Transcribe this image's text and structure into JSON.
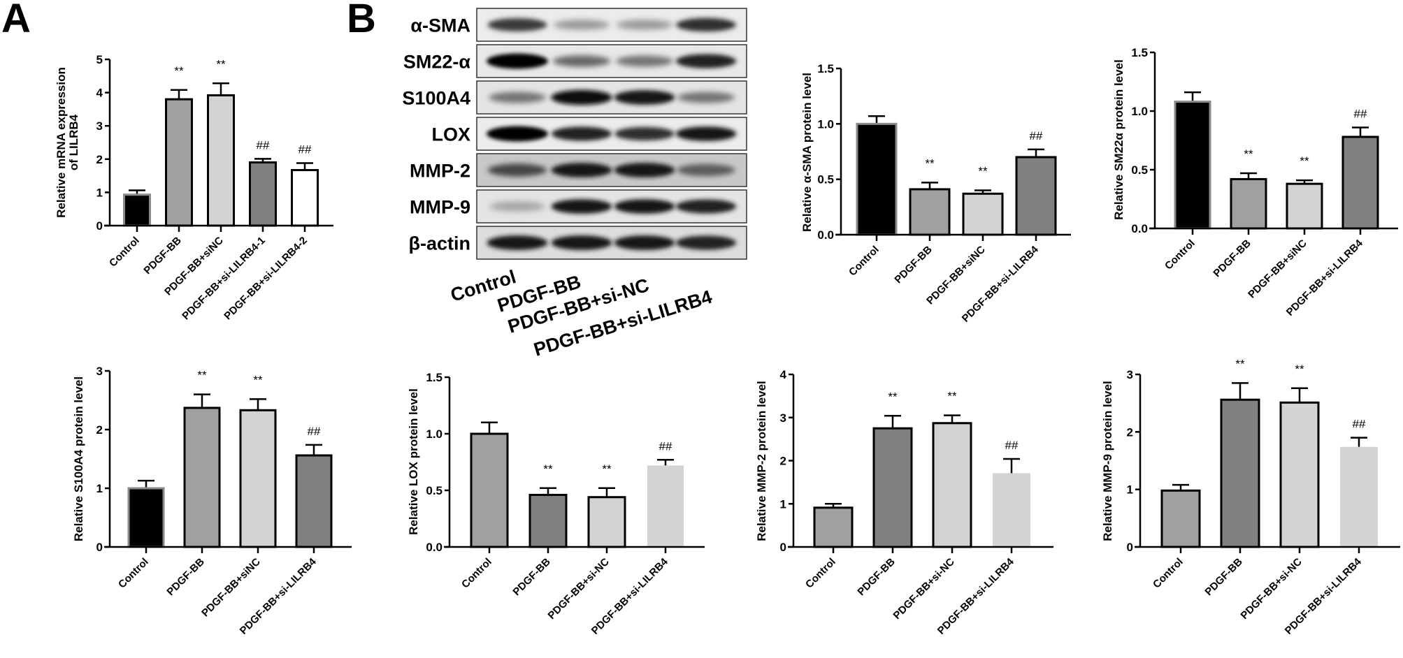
{
  "panels": {
    "A": {
      "letter": "A"
    },
    "B": {
      "letter": "B"
    }
  },
  "western_blot": {
    "proteins": [
      "α-SMA",
      "SM22-α",
      "S100A4",
      "LOX",
      "MMP-2",
      "MMP-9",
      "β-actin"
    ],
    "lanes": [
      "Control",
      "PDGF-BB",
      "PDGF-BB+si-NC",
      "PDGF-BB+si-LILRB4"
    ],
    "band_intensity": [
      [
        0.75,
        0.35,
        0.35,
        0.8
      ],
      [
        1.0,
        0.55,
        0.5,
        0.85
      ],
      [
        0.5,
        0.95,
        0.9,
        0.5
      ],
      [
        1.0,
        0.85,
        0.8,
        0.9
      ],
      [
        0.7,
        0.9,
        0.9,
        0.6
      ],
      [
        0.3,
        0.9,
        0.9,
        0.85
      ],
      [
        0.9,
        0.9,
        0.9,
        0.85
      ]
    ],
    "membrane_bg": [
      "#ececec",
      "#e8e8e8",
      "#e4e4e4",
      "#ececec",
      "#c8c8c8",
      "#e4e4e4",
      "#dcdcdc"
    ]
  },
  "colors": {
    "black": "#000000",
    "mid_grey": "#a0a0a0",
    "light_grey": "#d3d3d3",
    "dark_grey": "#808080",
    "white": "#ffffff"
  },
  "chart_data": [
    {
      "id": "A-mrna",
      "type": "bar",
      "title": "",
      "ylabel": [
        "Relative  mRNA expression",
        "of LILRB4"
      ],
      "xlabel": "",
      "categories": [
        "Control",
        "PDGF-BB",
        "PDGF-BB+siNC",
        "PDGF-BB+si-LILRB4-1",
        "PDGF-BB+si-LILRB4-2"
      ],
      "values": [
        0.93,
        3.8,
        3.92,
        1.9,
        1.67
      ],
      "errors": [
        0.13,
        0.28,
        0.36,
        0.11,
        0.21
      ],
      "annotations": [
        "",
        "**",
        "**",
        "##",
        "##"
      ],
      "fills": [
        "#000000",
        "#a0a0a0",
        "#d3d3d3",
        "#808080",
        "#ffffff"
      ],
      "ylim": [
        0,
        5
      ],
      "yticks": [
        "0",
        "1",
        "2",
        "3",
        "4",
        "5"
      ],
      "grid": false
    },
    {
      "id": "B-asma",
      "type": "bar",
      "title": "",
      "ylabel": [
        "Relative α-SMA protein level"
      ],
      "xlabel": "",
      "categories": [
        "Control",
        "PDGF-BB",
        "PDGF-BB+siNC",
        "PDGF-BB+si-LILRB4"
      ],
      "values": [
        1.0,
        0.41,
        0.37,
        0.7
      ],
      "errors": [
        0.07,
        0.06,
        0.03,
        0.07
      ],
      "annotations": [
        "",
        "**",
        "**",
        "##"
      ],
      "fills": [
        "#000000",
        "#a0a0a0",
        "#d3d3d3",
        "#808080"
      ],
      "ylim": [
        0,
        1.5
      ],
      "yticks": [
        "0.0",
        "0.5",
        "1.0",
        "1.5"
      ],
      "grid": false
    },
    {
      "id": "B-sm22a",
      "type": "bar",
      "title": "",
      "ylabel": [
        "Relative SM22α protein level"
      ],
      "xlabel": "",
      "categories": [
        "Control",
        "PDGF-BB",
        "PDGF-BB+siNC",
        "PDGF-BB+si-LILRB4"
      ],
      "values": [
        1.08,
        0.42,
        0.38,
        0.78
      ],
      "errors": [
        0.08,
        0.05,
        0.03,
        0.08
      ],
      "annotations": [
        "",
        "**",
        "**",
        "##"
      ],
      "fills": [
        "#000000",
        "#a0a0a0",
        "#d3d3d3",
        "#808080"
      ],
      "ylim": [
        0,
        1.5
      ],
      "yticks": [
        "0.0",
        "0.5",
        "1.0",
        "1.5"
      ],
      "grid": false
    },
    {
      "id": "B-s100a4",
      "type": "bar",
      "title": "",
      "ylabel": [
        "Relative S100A4 protein level"
      ],
      "xlabel": "",
      "categories": [
        "Control",
        "PDGF-BB",
        "PDGF-BB+siNC",
        "PDGF-BB+si-LILRB4"
      ],
      "values": [
        1.0,
        2.37,
        2.33,
        1.56
      ],
      "errors": [
        0.13,
        0.23,
        0.19,
        0.18
      ],
      "annotations": [
        "",
        "**",
        "**",
        "##"
      ],
      "fills": [
        "#000000",
        "#a0a0a0",
        "#d3d3d3",
        "#808080"
      ],
      "ylim": [
        0,
        3
      ],
      "yticks": [
        "0",
        "1",
        "2",
        "3"
      ],
      "grid": false
    },
    {
      "id": "B-lox",
      "type": "bar",
      "title": "",
      "ylabel": [
        "Relative LOX protein level"
      ],
      "xlabel": "",
      "categories": [
        "Control",
        "PDGF-BB",
        "PDGF-BB+si-NC",
        "PDGF-BB+si-LILRB4"
      ],
      "values": [
        1.0,
        0.46,
        0.44,
        0.72
      ],
      "errors": [
        0.1,
        0.06,
        0.08,
        0.05
      ],
      "annotations": [
        "",
        "**",
        "**",
        "##"
      ],
      "fills": [
        "#a0a0a0",
        "#808080",
        "#d3d3d3",
        "#d3d3d3"
      ],
      "borders": [
        true,
        true,
        true,
        false
      ],
      "ylim": [
        0,
        1.5
      ],
      "yticks": [
        "0.0",
        "0.5",
        "1.0",
        "1.5"
      ],
      "grid": false
    },
    {
      "id": "B-mmp2",
      "type": "bar",
      "title": "",
      "ylabel": [
        "Relative MMP-2 protein level"
      ],
      "xlabel": "",
      "categories": [
        "Control",
        "PDGF-BB",
        "PDGF-BB+si-NC",
        "PDGF-BB+si-LILRB4"
      ],
      "values": [
        0.91,
        2.75,
        2.87,
        1.71
      ],
      "errors": [
        0.09,
        0.29,
        0.18,
        0.33
      ],
      "annotations": [
        "",
        "**",
        "**",
        "##"
      ],
      "fills": [
        "#a0a0a0",
        "#808080",
        "#d3d3d3",
        "#d3d3d3"
      ],
      "borders": [
        true,
        true,
        true,
        false
      ],
      "ylim": [
        0,
        4
      ],
      "yticks": [
        "0",
        "1",
        "2",
        "3",
        "4"
      ],
      "grid": false
    },
    {
      "id": "B-mmp9",
      "type": "bar",
      "title": "",
      "ylabel": [
        "Relative MMP-9 protein level"
      ],
      "xlabel": "",
      "categories": [
        "Control",
        "PDGF-BB",
        "PDGF-BB+si-NC",
        "PDGF-BB+si-LILRB4"
      ],
      "values": [
        0.98,
        2.56,
        2.51,
        1.74
      ],
      "errors": [
        0.1,
        0.29,
        0.25,
        0.16
      ],
      "annotations": [
        "",
        "**",
        "**",
        "##"
      ],
      "fills": [
        "#a0a0a0",
        "#808080",
        "#d3d3d3",
        "#d3d3d3"
      ],
      "borders": [
        true,
        true,
        true,
        false
      ],
      "ylim": [
        0,
        3
      ],
      "yticks": [
        "0",
        "1",
        "2",
        "3"
      ],
      "grid": false
    }
  ]
}
